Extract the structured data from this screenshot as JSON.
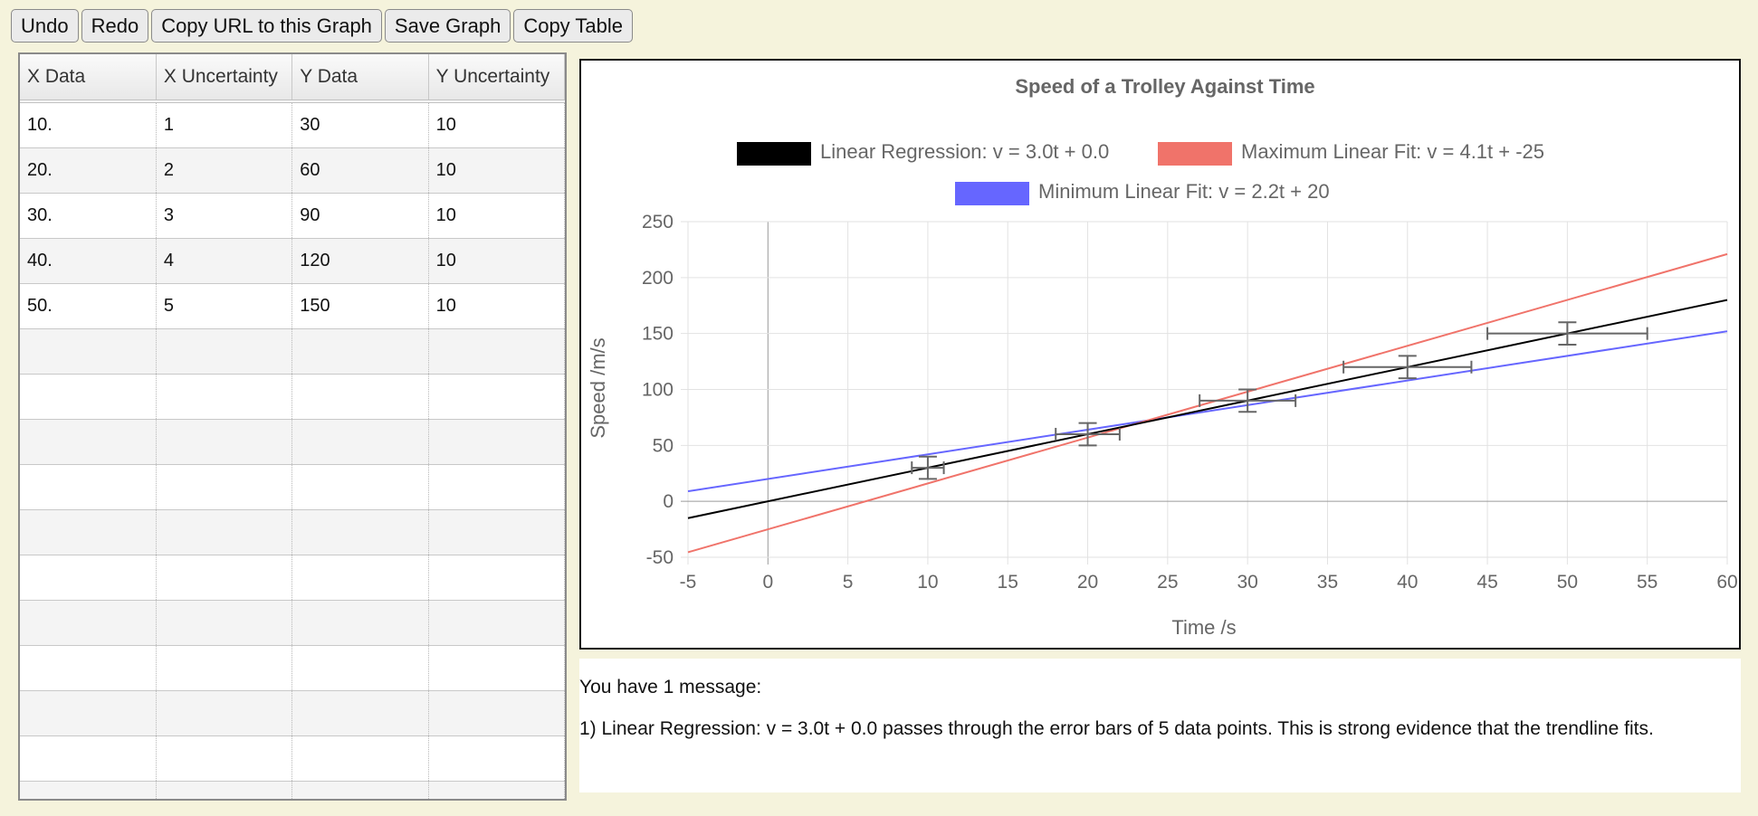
{
  "toolbar": {
    "undo": "Undo",
    "redo": "Redo",
    "copy_url": "Copy URL to this Graph",
    "save_graph": "Save Graph",
    "copy_table": "Copy Table"
  },
  "table": {
    "headers": [
      "X Data",
      "X Uncertainty",
      "Y Data",
      "Y Uncertainty"
    ],
    "rows": [
      [
        "10.",
        "1",
        "30",
        "10"
      ],
      [
        "20.",
        "2",
        "60",
        "10"
      ],
      [
        "30.",
        "3",
        "90",
        "10"
      ],
      [
        "40.",
        "4",
        "120",
        "10"
      ],
      [
        "50.",
        "5",
        "150",
        "10"
      ],
      [
        "",
        "",
        "",
        ""
      ],
      [
        "",
        "",
        "",
        ""
      ],
      [
        "",
        "",
        "",
        ""
      ],
      [
        "",
        "",
        "",
        ""
      ],
      [
        "",
        "",
        "",
        ""
      ],
      [
        "",
        "",
        "",
        ""
      ],
      [
        "",
        "",
        "",
        ""
      ],
      [
        "",
        "",
        "",
        ""
      ],
      [
        "",
        "",
        "",
        ""
      ],
      [
        "",
        "",
        "",
        ""
      ],
      [
        "",
        "",
        "",
        ""
      ]
    ]
  },
  "chart_data": {
    "type": "scatter",
    "title": "Speed of a Trolley Against Time",
    "xlabel": "Time /s",
    "ylabel": "Speed /m/s",
    "xlim": [
      -5,
      60
    ],
    "ylim": [
      -50,
      250
    ],
    "xticks": [
      -5,
      0,
      5,
      10,
      15,
      20,
      25,
      30,
      35,
      40,
      45,
      50,
      55,
      60
    ],
    "yticks": [
      -50,
      0,
      50,
      100,
      150,
      200,
      250
    ],
    "grid": true,
    "legend_position": "top",
    "points": [
      {
        "x": 10,
        "y": 30,
        "xerr": 1,
        "yerr": 10
      },
      {
        "x": 20,
        "y": 60,
        "xerr": 2,
        "yerr": 10
      },
      {
        "x": 30,
        "y": 90,
        "xerr": 3,
        "yerr": 10
      },
      {
        "x": 40,
        "y": 120,
        "xerr": 4,
        "yerr": 10
      },
      {
        "x": 50,
        "y": 150,
        "xerr": 5,
        "yerr": 10
      }
    ],
    "series": [
      {
        "name": "Linear Regression:  v = 3.0t + 0.0",
        "slope": 3.0,
        "intercept": 0.0,
        "color": "#000000"
      },
      {
        "name": "Maximum Linear Fit:  v = 4.1t + -25",
        "slope": 4.1,
        "intercept": -25,
        "color": "#f0736a"
      },
      {
        "name": "Minimum Linear Fit:  v = 2.2t + 20",
        "slope": 2.2,
        "intercept": 20,
        "color": "#6666ff"
      }
    ]
  },
  "messages": {
    "header": "You have 1 message:",
    "items": [
      "1) Linear Regression: v = 3.0t + 0.0 passes through the error bars of 5 data points. This is strong evidence that the trendline fits."
    ]
  }
}
